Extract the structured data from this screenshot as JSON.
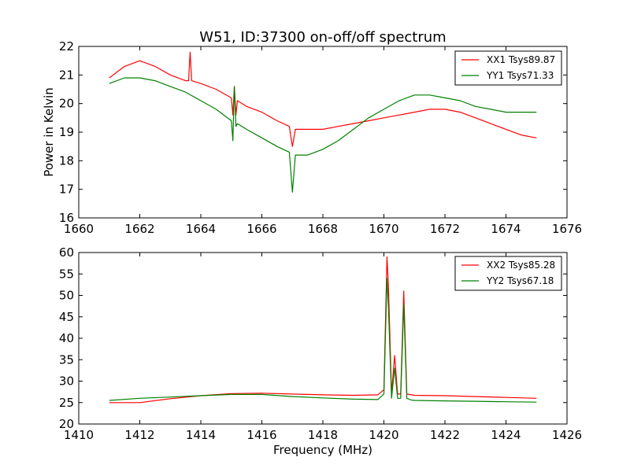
{
  "chart_data": [
    {
      "type": "line",
      "title": "W51, ID:37300 on-off/off spectrum",
      "xlabel": "",
      "ylabel": "Power in Kelvin",
      "xlim": [
        1660,
        1676
      ],
      "ylim": [
        16,
        22
      ],
      "xticks": [
        1660,
        1662,
        1664,
        1666,
        1668,
        1670,
        1672,
        1674,
        1676
      ],
      "yticks": [
        16,
        17,
        18,
        19,
        20,
        21,
        22
      ],
      "grid": false,
      "legend_position": "top-right",
      "series": [
        {
          "name": "XX1 Tsys89.87",
          "color": "#ff0000",
          "x": [
            1661.0,
            1661.5,
            1662.0,
            1662.5,
            1663.0,
            1663.5,
            1663.6,
            1663.65,
            1663.7,
            1664.0,
            1664.5,
            1665.0,
            1665.05,
            1665.1,
            1665.15,
            1665.2,
            1665.5,
            1666.0,
            1666.5,
            1666.9,
            1667.0,
            1667.1,
            1667.5,
            1668.0,
            1668.5,
            1669.0,
            1669.5,
            1670.0,
            1670.5,
            1671.0,
            1671.5,
            1672.0,
            1672.5,
            1673.0,
            1673.5,
            1674.0,
            1674.5,
            1675.0
          ],
          "y": [
            20.9,
            21.3,
            21.5,
            21.3,
            21.0,
            20.8,
            20.8,
            21.8,
            20.8,
            20.7,
            20.5,
            20.2,
            19.6,
            20.6,
            19.6,
            20.1,
            19.9,
            19.7,
            19.4,
            19.2,
            18.5,
            19.1,
            19.1,
            19.1,
            19.2,
            19.3,
            19.4,
            19.5,
            19.6,
            19.7,
            19.8,
            19.8,
            19.7,
            19.5,
            19.3,
            19.1,
            18.9,
            18.8
          ]
        },
        {
          "name": "YY1 Tsys71.33",
          "color": "#008000",
          "x": [
            1661.0,
            1661.5,
            1662.0,
            1662.5,
            1663.0,
            1663.5,
            1664.0,
            1664.5,
            1665.0,
            1665.05,
            1665.1,
            1665.15,
            1665.2,
            1665.5,
            1666.0,
            1666.5,
            1666.9,
            1667.0,
            1667.1,
            1667.5,
            1668.0,
            1668.5,
            1669.0,
            1669.5,
            1670.0,
            1670.5,
            1671.0,
            1671.5,
            1672.0,
            1672.5,
            1673.0,
            1673.5,
            1674.0,
            1674.5,
            1675.0
          ],
          "y": [
            20.7,
            20.9,
            20.9,
            20.8,
            20.6,
            20.4,
            20.1,
            19.8,
            19.4,
            18.7,
            20.6,
            19.2,
            19.3,
            19.1,
            18.8,
            18.5,
            18.3,
            16.9,
            18.2,
            18.2,
            18.4,
            18.7,
            19.1,
            19.5,
            19.8,
            20.1,
            20.3,
            20.3,
            20.2,
            20.1,
            19.9,
            19.8,
            19.7,
            19.7,
            19.7
          ]
        }
      ]
    },
    {
      "type": "line",
      "title": "",
      "xlabel": "Frequency (MHz)",
      "ylabel": "",
      "xlim": [
        1410,
        1426
      ],
      "ylim": [
        20,
        60
      ],
      "xticks": [
        1410,
        1412,
        1414,
        1416,
        1418,
        1420,
        1422,
        1424,
        1426
      ],
      "yticks": [
        20,
        25,
        30,
        35,
        40,
        45,
        50,
        55,
        60
      ],
      "grid": false,
      "legend_position": "top-right",
      "series": [
        {
          "name": "XX2 Tsys85.28",
          "color": "#ff0000",
          "x": [
            1411.0,
            1412.0,
            1413.0,
            1414.0,
            1415.0,
            1416.0,
            1417.0,
            1418.0,
            1419.0,
            1419.8,
            1420.0,
            1420.1,
            1420.15,
            1420.25,
            1420.35,
            1420.45,
            1420.55,
            1420.65,
            1420.75,
            1420.9,
            1421.0,
            1422.0,
            1423.0,
            1424.0,
            1425.0
          ],
          "y": [
            25.0,
            25.0,
            25.9,
            26.6,
            27.1,
            27.2,
            27.0,
            26.8,
            26.7,
            26.8,
            28.0,
            59.0,
            52.0,
            27.0,
            36.0,
            27.0,
            27.0,
            51.0,
            27.0,
            26.8,
            26.7,
            26.6,
            26.4,
            26.2,
            26.0
          ]
        },
        {
          "name": "YY2 Tsys67.18",
          "color": "#008000",
          "x": [
            1411.0,
            1412.0,
            1413.0,
            1414.0,
            1415.0,
            1416.0,
            1417.0,
            1418.0,
            1419.0,
            1419.8,
            1420.0,
            1420.1,
            1420.15,
            1420.25,
            1420.35,
            1420.45,
            1420.55,
            1420.65,
            1420.75,
            1420.9,
            1421.0,
            1422.0,
            1423.0,
            1424.0,
            1425.0
          ],
          "y": [
            25.5,
            26.0,
            26.3,
            26.6,
            26.9,
            26.9,
            26.4,
            26.1,
            25.8,
            25.7,
            27.0,
            54.0,
            47.0,
            26.0,
            33.0,
            26.0,
            26.0,
            48.0,
            26.0,
            25.6,
            25.5,
            25.4,
            25.3,
            25.2,
            25.1
          ]
        }
      ]
    }
  ]
}
